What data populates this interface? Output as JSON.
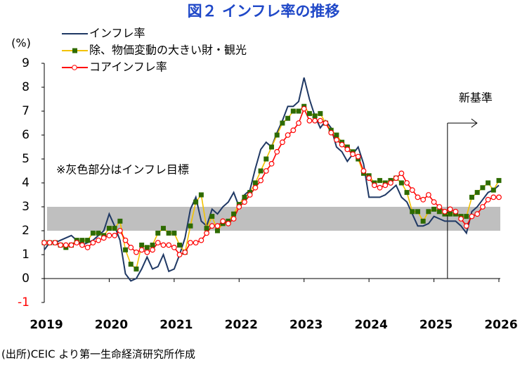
{
  "chart_data": {
    "type": "line",
    "title": "図２ インフレ率の推移",
    "y_label": "(%)",
    "source": "(出所)CEIC より第一生命経済研究所作成",
    "annotation": "※灰色部分はインフレ目標",
    "marker_line": {
      "label": "新基準",
      "index": 74.5
    },
    "target_band": [
      2,
      3
    ],
    "band_color": "#bfbfbf",
    "negative_tick_color": "#ff0000",
    "categories": [
      "2019",
      null,
      null,
      null,
      null,
      null,
      null,
      null,
      null,
      null,
      null,
      null,
      "2020",
      null,
      null,
      null,
      null,
      null,
      null,
      null,
      null,
      null,
      null,
      null,
      "2021",
      null,
      null,
      null,
      null,
      null,
      null,
      null,
      null,
      null,
      null,
      null,
      "2022",
      null,
      null,
      null,
      null,
      null,
      null,
      null,
      null,
      null,
      null,
      null,
      "2023",
      null,
      null,
      null,
      null,
      null,
      null,
      null,
      null,
      null,
      null,
      null,
      "2024",
      null,
      null,
      null,
      null,
      null,
      null,
      null,
      null,
      null,
      null,
      null,
      "2025",
      null,
      null,
      null,
      null,
      null,
      null,
      null,
      null,
      null,
      null,
      null,
      "2026"
    ],
    "ylim": [
      -1,
      9
    ],
    "yticks": [
      -1,
      0,
      1,
      2,
      3,
      4,
      5,
      6,
      7,
      8,
      9
    ],
    "series": [
      {
        "name": "インフレ率",
        "color": "#1f3864",
        "marker": "none",
        "values": [
          1.2,
          1.5,
          1.5,
          1.6,
          1.7,
          1.8,
          1.6,
          1.4,
          1.5,
          1.6,
          1.8,
          2.0,
          2.7,
          2.2,
          1.6,
          0.2,
          -0.1,
          0.0,
          0.4,
          0.9,
          0.4,
          0.5,
          1.0,
          0.3,
          0.4,
          1.0,
          1.7,
          2.9,
          3.4,
          2.4,
          2.2,
          2.9,
          2.7,
          3.0,
          3.2,
          3.6,
          3.0,
          3.5,
          3.7,
          4.6,
          5.4,
          5.7,
          5.5,
          6.1,
          6.6,
          7.2,
          7.2,
          7.4,
          8.4,
          7.5,
          6.8,
          6.3,
          6.6,
          6.3,
          5.5,
          5.3,
          4.9,
          5.2,
          5.5,
          4.8,
          3.4,
          3.4,
          3.4,
          3.5,
          3.7,
          3.9,
          3.4,
          3.2,
          2.7,
          2.2,
          2.2,
          2.3,
          2.6,
          2.5,
          2.4,
          2.4,
          2.4,
          2.2,
          1.9,
          2.8,
          3.0,
          3.3,
          3.6,
          3.7,
          3.9
        ]
      },
      {
        "name": "除、物価変動の大きい財・観光",
        "color": "#f2c200",
        "marker": "square",
        "marker_color": "#2e6b00",
        "values": [
          1.5,
          1.5,
          1.5,
          1.4,
          1.3,
          1.4,
          1.6,
          1.6,
          1.6,
          1.9,
          1.9,
          1.8,
          2.1,
          2.1,
          2.4,
          1.2,
          0.6,
          0.4,
          1.4,
          1.3,
          1.4,
          1.9,
          2.1,
          1.9,
          1.9,
          1.4,
          1.1,
          2.2,
          3.2,
          3.5,
          2.1,
          2.6,
          2.0,
          2.3,
          2.4,
          2.7,
          3.1,
          3.4,
          3.6,
          4.0,
          4.5,
          5.0,
          5.5,
          6.0,
          6.5,
          6.7,
          7.0,
          7.0,
          7.2,
          6.9,
          6.8,
          6.9,
          6.5,
          6.2,
          6.0,
          5.7,
          5.5,
          5.3,
          5.0,
          4.4,
          4.3,
          4.0,
          4.1,
          4.0,
          4.1,
          4.2,
          4.0,
          3.6,
          2.8,
          2.8,
          2.4,
          2.8,
          2.9,
          2.8,
          2.7,
          2.7,
          2.7,
          2.6,
          2.6,
          3.4,
          3.6,
          3.8,
          4.0,
          3.7,
          4.1
        ]
      },
      {
        "name": "コアインフレ率",
        "color": "#ff0000",
        "marker": "circle",
        "marker_color": "#ff0000",
        "values": [
          1.5,
          1.5,
          1.5,
          1.4,
          1.4,
          1.4,
          1.5,
          1.4,
          1.3,
          1.5,
          1.6,
          1.7,
          1.8,
          1.8,
          2.0,
          1.6,
          1.3,
          1.1,
          1.2,
          1.1,
          1.2,
          1.5,
          1.4,
          1.4,
          1.3,
          1.0,
          1.1,
          1.5,
          1.5,
          1.6,
          1.9,
          2.2,
          2.2,
          2.4,
          2.3,
          2.5,
          3.0,
          3.2,
          3.5,
          3.8,
          4.1,
          4.5,
          4.8,
          5.3,
          5.7,
          6.0,
          6.2,
          6.5,
          7.1,
          6.6,
          6.6,
          6.6,
          6.5,
          6.1,
          5.8,
          5.6,
          5.4,
          5.2,
          5.1,
          4.5,
          4.2,
          3.9,
          3.8,
          3.9,
          4.0,
          4.2,
          4.4,
          4.0,
          3.7,
          3.4,
          3.3,
          3.5,
          3.2,
          3.0,
          2.8,
          2.9,
          2.8,
          2.5,
          2.2,
          2.6,
          2.7,
          3.0,
          3.3,
          3.4,
          3.4
        ]
      }
    ]
  }
}
